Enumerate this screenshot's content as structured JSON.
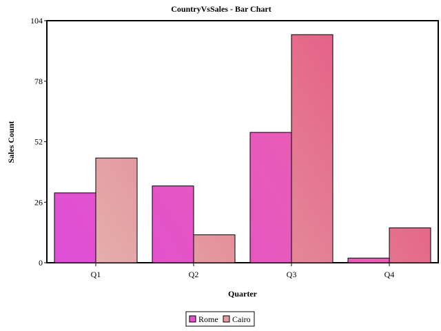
{
  "chart_data": {
    "type": "bar",
    "title": "CountryVsSales - Bar Chart",
    "xlabel": "Quarter",
    "ylabel": "Sales Count",
    "categories": [
      "Q1",
      "Q2",
      "Q3",
      "Q4"
    ],
    "series": [
      {
        "name": "Rome",
        "values": [
          30,
          33,
          56,
          2
        ]
      },
      {
        "name": "Cairo",
        "values": [
          45,
          12,
          98,
          15
        ]
      }
    ],
    "ylim": [
      0,
      104
    ],
    "yticks": [
      0,
      26,
      52,
      78,
      104
    ],
    "grid": false,
    "legend_position": "bottom",
    "colors": {
      "rome_start": "#e04ed8",
      "rome_end": "#f0659e",
      "cairo_start": "#e4b8b0",
      "cairo_end": "#e54c7c",
      "border": "#000000"
    }
  }
}
